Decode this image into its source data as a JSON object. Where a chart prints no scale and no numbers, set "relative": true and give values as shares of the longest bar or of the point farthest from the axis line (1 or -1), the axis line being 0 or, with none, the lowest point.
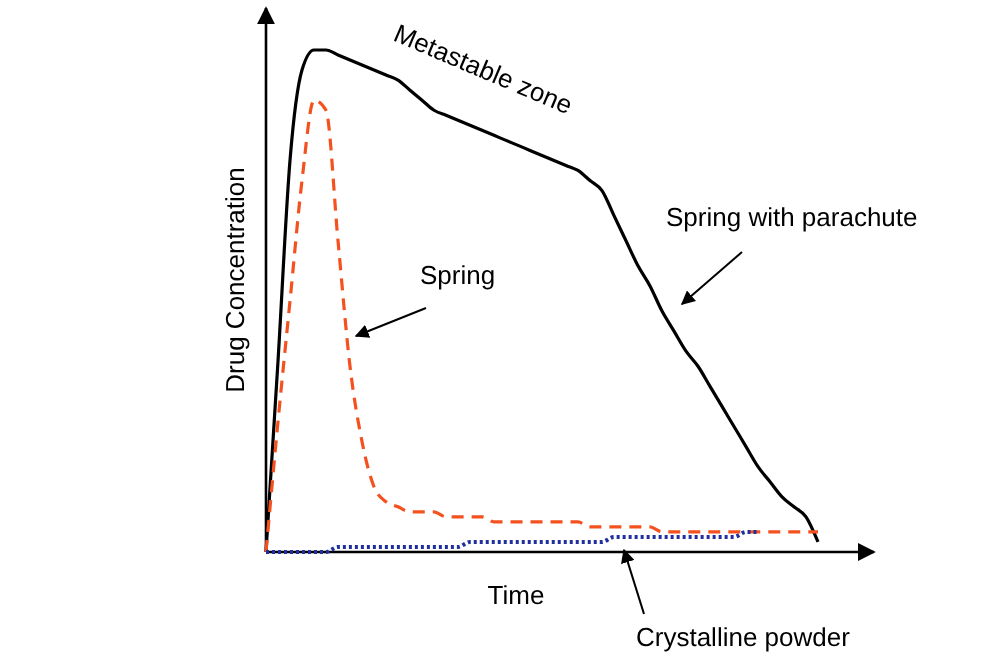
{
  "chart_data": {
    "type": "line",
    "relative": true,
    "xlabel": "Time",
    "ylabel": "Drug Concentration",
    "categories": [
      null,
      null,
      null,
      null,
      null,
      null,
      null,
      null,
      null,
      null,
      null,
      null,
      null,
      null,
      null,
      null,
      null,
      null,
      null,
      null,
      null,
      null,
      null,
      null,
      null,
      null,
      null,
      null,
      null,
      null,
      null,
      null,
      null,
      null,
      null,
      null,
      null,
      null,
      null,
      null,
      null,
      null,
      null,
      null,
      null,
      null,
      null
    ],
    "series": [
      {
        "name": "Spring with parachute",
        "color": "#000000",
        "line_style": "solid",
        "values": [
          0,
          0.38,
          0.78,
          0.96,
          1,
          1,
          0.99,
          0.98,
          0.97,
          0.96,
          0.95,
          0.94,
          0.92,
          0.9,
          0.88,
          0.87,
          0.86,
          0.85,
          0.84,
          0.83,
          0.82,
          0.81,
          0.8,
          0.79,
          0.78,
          0.77,
          0.76,
          0.74,
          0.72,
          0.67,
          0.62,
          0.57,
          0.53,
          0.48,
          0.44,
          0.4,
          0.37,
          0.33,
          0.29,
          0.25,
          0.21,
          0.17,
          0.14,
          0.11,
          0.09,
          0.07,
          0.02
        ]
      },
      {
        "name": "Spring",
        "color": "#f4511e",
        "line_style": "dashed",
        "values": [
          0,
          0.26,
          0.5,
          0.74,
          0.9,
          0.88,
          0.62,
          0.37,
          0.22,
          0.13,
          0.1,
          0.09,
          0.08,
          0.08,
          0.08,
          0.07,
          0.07,
          0.07,
          0.07,
          0.06,
          0.06,
          0.06,
          0.06,
          0.06,
          0.06,
          0.06,
          0.06,
          0.05,
          0.05,
          0.05,
          0.05,
          0.05,
          0.05,
          0.04,
          0.04,
          0.04,
          0.04,
          0.04,
          0.04,
          0.04,
          0.04,
          0.04,
          0.04,
          0.04,
          0.04,
          0.04,
          0.04
        ]
      },
      {
        "name": "Crystalline powder",
        "color": "#1f2f9f",
        "line_style": "dotted",
        "values": [
          0,
          0,
          0,
          0,
          0,
          0,
          0.01,
          0.01,
          0.01,
          0.01,
          0.01,
          0.01,
          0.01,
          0.01,
          0.01,
          0.01,
          0.01,
          0.02,
          0.02,
          0.02,
          0.02,
          0.02,
          0.02,
          0.02,
          0.02,
          0.02,
          0.02,
          0.02,
          0.02,
          0.03,
          0.03,
          0.03,
          0.03,
          0.03,
          0.03,
          0.03,
          0.03,
          0.03,
          0.03,
          0.03,
          0.04,
          0.04,
          null,
          null,
          null,
          null,
          null
        ]
      }
    ],
    "annotations": [
      "Metastable zone"
    ],
    "legend": false,
    "grid": false
  }
}
